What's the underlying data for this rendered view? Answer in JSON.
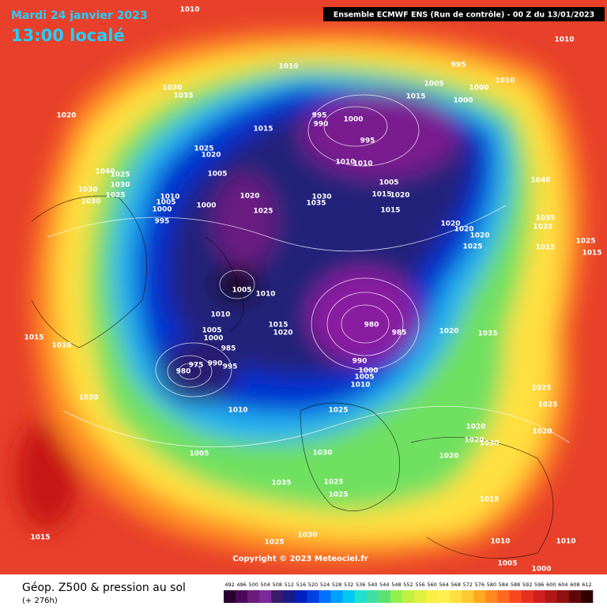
{
  "header": {
    "date": "Mardi 24 janvier 2023",
    "time": "13:00 localé",
    "model": "Ensemble ECMWF ENS  (Run de contrôle)  -  00 Z du 13/01/2023"
  },
  "map": {
    "isobar_labels": [
      "1010",
      "1030",
      "1035",
      "1020",
      "1010",
      "995",
      "1010",
      "1005",
      "1000",
      "1010",
      "1015",
      "1000",
      "995",
      "990",
      "1000",
      "995",
      "1015",
      "1025",
      "1020",
      "1040",
      "1025",
      "1030",
      "1030",
      "1025",
      "1030",
      "1005",
      "1010",
      "1005",
      "1000",
      "1000",
      "995",
      "1020",
      "1025",
      "1030",
      "1035",
      "1010",
      "1010",
      "1005",
      "1015",
      "1020",
      "1015",
      "1040",
      "1020",
      "1020",
      "1020",
      "1025",
      "1035",
      "1025",
      "1015",
      "1025",
      "1015",
      "1005",
      "1010",
      "1010",
      "980",
      "985",
      "1020",
      "1035",
      "1015",
      "1020",
      "1005",
      "1000",
      "985",
      "1015",
      "1010",
      "980",
      "975",
      "990",
      "995",
      "990",
      "1000",
      "1005",
      "1010",
      "1020",
      "1010",
      "1025",
      "1025",
      "1025",
      "1020",
      "1020",
      "1020",
      "1030",
      "1005",
      "1030",
      "1020",
      "1035",
      "1025",
      "1025",
      "1015",
      "1015",
      "1025",
      "1030",
      "1010",
      "1010",
      "1005",
      "1000"
    ],
    "copyright": "Copyright © 2023 Meteociel.fr"
  },
  "footer": {
    "title": "Géop. Z500 & pression au sol",
    "lead": "(+ 276h)"
  },
  "scale": {
    "values": [
      492,
      496,
      500,
      504,
      508,
      512,
      516,
      520,
      524,
      528,
      532,
      536,
      540,
      544,
      548,
      552,
      556,
      560,
      564,
      568,
      572,
      576,
      580,
      584,
      588,
      592,
      596,
      600,
      604,
      608,
      612
    ],
    "colors": [
      "#2a0030",
      "#4a0a5a",
      "#6a1a7a",
      "#7a2a9a",
      "#3a1a6a",
      "#1a1a8a",
      "#0020c0",
      "#0040e0",
      "#0070ff",
      "#00a0ff",
      "#00c8f0",
      "#20e0d0",
      "#40e0a0",
      "#60e070",
      "#90f050",
      "#c0f040",
      "#e0f040",
      "#f8f040",
      "#fff050",
      "#ffe040",
      "#ffc830",
      "#ffa820",
      "#ff8820",
      "#ff6820",
      "#f84820",
      "#e83020",
      "#d02020",
      "#b01818",
      "#901010",
      "#600808",
      "#300000"
    ]
  }
}
